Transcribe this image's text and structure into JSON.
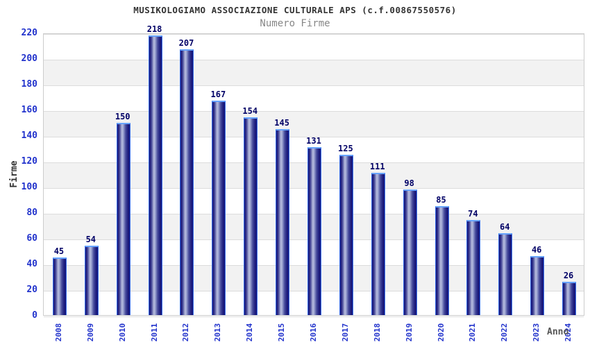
{
  "header": {
    "title": "MUSIKOLOGIAMO ASSOCIAZIONE CULTURALE APS (c.f.00867550576)",
    "subtitle": "Numero Firme"
  },
  "chart_data": {
    "type": "bar",
    "title": "MUSIKOLOGIAMO ASSOCIAZIONE CULTURALE APS (c.f.00867550576)",
    "subtitle": "Numero Firme",
    "xlabel": "Anno",
    "ylabel": "Firme",
    "categories": [
      "2008",
      "2009",
      "2010",
      "2011",
      "2012",
      "2013",
      "2014",
      "2015",
      "2016",
      "2017",
      "2018",
      "2019",
      "2020",
      "2021",
      "2022",
      "2023",
      "2024"
    ],
    "values": [
      45,
      54,
      150,
      218,
      207,
      167,
      154,
      145,
      131,
      125,
      111,
      98,
      85,
      74,
      64,
      46,
      26
    ],
    "ylim": [
      0,
      220
    ],
    "ytick_step": 20,
    "yticks": [
      0,
      20,
      40,
      60,
      80,
      100,
      120,
      140,
      160,
      180,
      200,
      220
    ],
    "grid": true,
    "banded_background": true,
    "legend": null,
    "colors": {
      "title": "#333333",
      "subtitle": "#888888",
      "tick_label": "#2233cc",
      "value_label": "#000066",
      "y_axis_title": "#333333",
      "x_axis_title": "#555555",
      "plot_border": "#cccccc",
      "grid_line": "#dcdcdc",
      "band": "#f2f2f2",
      "bar_border": "#3a6fe8",
      "bar_top_cap": "#66a3ff",
      "bar_gradient": [
        "#15157a",
        "#31318a",
        "#b8bede",
        "#9da4d2",
        "#4a4f9e",
        "#1d1d7e",
        "#15157a"
      ]
    }
  }
}
